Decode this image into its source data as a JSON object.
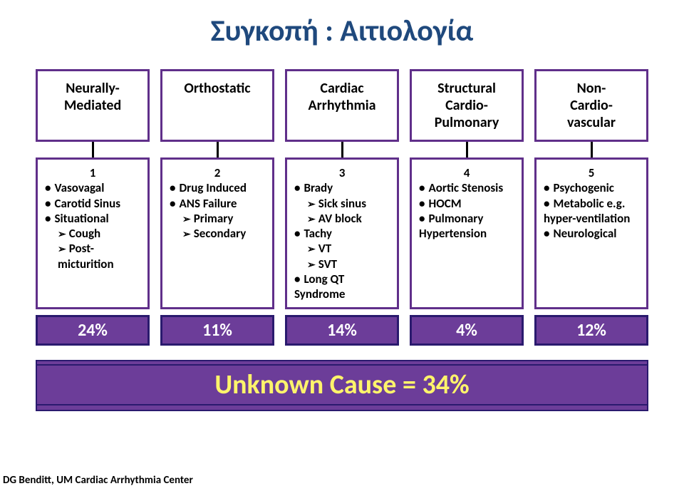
{
  "title": "Συγκοπή : Αιτιολογία",
  "colors": {
    "title_color": "#1f497d",
    "box_border": "#602f8a",
    "pct_bg": "#6c3d99",
    "pct_border": "#2a1a6e",
    "pct_text": "#ffffff",
    "unknown_text": "#fff46b",
    "background": "#ffffff"
  },
  "top_boxes": [
    {
      "label": "Neurally-\nMediated"
    },
    {
      "label": "Orthostatic"
    },
    {
      "label": "Cardiac\nArrhythmia"
    },
    {
      "label": "Structural\nCardio-\nPulmonary"
    },
    {
      "label": "Non-\nCardio-\nvascular"
    }
  ],
  "columns": [
    {
      "num": "1",
      "items": [
        {
          "t": "bullet",
          "text": "Vasovagal"
        },
        {
          "t": "bullet",
          "text": "Carotid Sinus"
        },
        {
          "t": "bullet",
          "text": "Situational"
        },
        {
          "t": "arrow",
          "text": "Cough"
        },
        {
          "t": "arrow",
          "text": "Post-micturition"
        }
      ],
      "pct": "24%"
    },
    {
      "num": "2",
      "items": [
        {
          "t": "bullet",
          "text": "Drug Induced"
        },
        {
          "t": "bullet",
          "text": "ANS Failure"
        },
        {
          "t": "arrow",
          "text": "Primary"
        },
        {
          "t": "arrow",
          "text": "Secondary"
        }
      ],
      "pct": "11%"
    },
    {
      "num": "3",
      "items": [
        {
          "t": "bullet",
          "text": "Brady"
        },
        {
          "t": "arrow",
          "text": "Sick sinus"
        },
        {
          "t": "arrow",
          "text": "AV block"
        },
        {
          "t": "bullet",
          "text": "Tachy"
        },
        {
          "t": "arrow",
          "text": "VT"
        },
        {
          "t": "arrow",
          "text": "SVT"
        },
        {
          "t": "bullet",
          "text": "Long QT Syndrome"
        }
      ],
      "pct": "14%"
    },
    {
      "num": "4",
      "items": [
        {
          "t": "bullet",
          "text": "Aortic Stenosis"
        },
        {
          "t": "bullet",
          "text": "HOCM"
        },
        {
          "t": "bullet",
          "text": "Pulmonary Hypertension"
        }
      ],
      "pct": "4%"
    },
    {
      "num": "5",
      "items": [
        {
          "t": "bullet",
          "text": "Psychogenic"
        },
        {
          "t": "bullet",
          "text": "Metabolic e.g. hyper-ventilation"
        },
        {
          "t": "bullet",
          "text": "Neurological"
        }
      ],
      "pct": "12%"
    }
  ],
  "unknown_label": "Unknown Cause = 34%",
  "credit": "DG Benditt, UM Cardiac Arrhythmia Center"
}
